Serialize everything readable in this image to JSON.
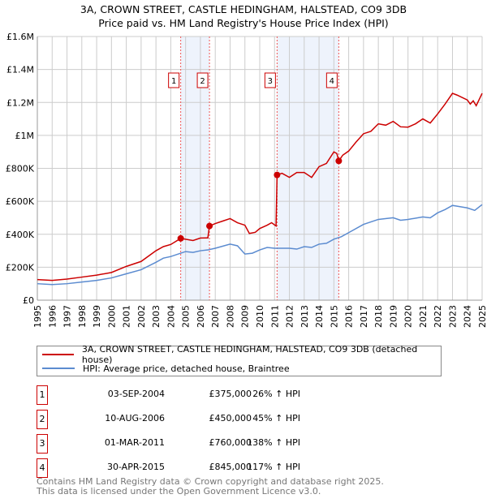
{
  "chart_data": {
    "type": "line",
    "title": "3A, CROWN STREET, CASTLE HEDINGHAM, HALSTEAD, CO9 3DB",
    "subtitle": "Price paid vs. HM Land Registry's House Price Index (HPI)",
    "xlim": [
      1995,
      2025
    ],
    "ylim": [
      0,
      1600000
    ],
    "y_ticks": [
      {
        "v": 0,
        "label": "£0"
      },
      {
        "v": 200000,
        "label": "£200K"
      },
      {
        "v": 400000,
        "label": "£400K"
      },
      {
        "v": 600000,
        "label": "£600K"
      },
      {
        "v": 800000,
        "label": "£800K"
      },
      {
        "v": 1000000,
        "label": "£1M"
      },
      {
        "v": 1200000,
        "label": "£1.2M"
      },
      {
        "v": 1400000,
        "label": "£1.4M"
      },
      {
        "v": 1600000,
        "label": "£1.6M"
      }
    ],
    "x_ticks": [
      "1995",
      "1996",
      "1997",
      "1998",
      "1999",
      "2000",
      "2001",
      "2002",
      "2003",
      "2004",
      "2005",
      "2006",
      "2007",
      "2008",
      "2009",
      "2010",
      "2011",
      "2012",
      "2013",
      "2014",
      "2015",
      "2016",
      "2017",
      "2018",
      "2019",
      "2020",
      "2021",
      "2022",
      "2023",
      "2024",
      "2025"
    ],
    "grid": true,
    "legend_placement": "below",
    "series": [
      {
        "name": "3A, CROWN STREET, CASTLE HEDINGHAM, HALSTEAD, CO9 3DB (detached house)",
        "color": "#cc0000",
        "points": [
          [
            1995,
            125000
          ],
          [
            1996,
            120000
          ],
          [
            1997,
            128000
          ],
          [
            1998,
            140000
          ],
          [
            1999,
            152000
          ],
          [
            2000,
            168000
          ],
          [
            2001,
            205000
          ],
          [
            2002,
            235000
          ],
          [
            2003,
            300000
          ],
          [
            2003.5,
            325000
          ],
          [
            2004,
            338000
          ],
          [
            2004.67,
            375000
          ],
          [
            2005,
            370000
          ],
          [
            2005.5,
            362000
          ],
          [
            2006,
            377000
          ],
          [
            2006.5,
            378000
          ],
          [
            2006.61,
            450000
          ],
          [
            2007,
            465000
          ],
          [
            2007.5,
            480000
          ],
          [
            2008,
            495000
          ],
          [
            2008.5,
            470000
          ],
          [
            2009,
            455000
          ],
          [
            2009.3,
            405000
          ],
          [
            2009.7,
            412000
          ],
          [
            2010,
            435000
          ],
          [
            2010.5,
            455000
          ],
          [
            2010.8,
            470000
          ],
          [
            2011.1,
            450000
          ],
          [
            2011.17,
            760000
          ],
          [
            2011.5,
            770000
          ],
          [
            2012,
            745000
          ],
          [
            2012.5,
            775000
          ],
          [
            2013,
            775000
          ],
          [
            2013.5,
            745000
          ],
          [
            2014,
            810000
          ],
          [
            2014.5,
            830000
          ],
          [
            2015,
            900000
          ],
          [
            2015.2,
            890000
          ],
          [
            2015.33,
            845000
          ],
          [
            2015.6,
            880000
          ],
          [
            2016,
            905000
          ],
          [
            2016.5,
            960000
          ],
          [
            2017,
            1010000
          ],
          [
            2017.5,
            1025000
          ],
          [
            2018,
            1070000
          ],
          [
            2018.5,
            1062000
          ],
          [
            2019,
            1085000
          ],
          [
            2019.5,
            1052000
          ],
          [
            2020,
            1050000
          ],
          [
            2020.5,
            1070000
          ],
          [
            2021,
            1100000
          ],
          [
            2021.5,
            1075000
          ],
          [
            2022,
            1130000
          ],
          [
            2022.5,
            1190000
          ],
          [
            2023,
            1255000
          ],
          [
            2023.3,
            1245000
          ],
          [
            2024,
            1215000
          ],
          [
            2024.2,
            1190000
          ],
          [
            2024.4,
            1210000
          ],
          [
            2024.6,
            1180000
          ],
          [
            2025,
            1255000
          ]
        ]
      },
      {
        "name": "HPI: Average price, detached house, Braintree",
        "color": "#5b8bd0",
        "points": [
          [
            1995,
            100000
          ],
          [
            1996,
            95000
          ],
          [
            1997,
            100000
          ],
          [
            1998,
            110000
          ],
          [
            1999,
            120000
          ],
          [
            2000,
            135000
          ],
          [
            2001,
            160000
          ],
          [
            2002,
            185000
          ],
          [
            2003,
            230000
          ],
          [
            2003.5,
            255000
          ],
          [
            2004,
            265000
          ],
          [
            2005,
            295000
          ],
          [
            2005.5,
            290000
          ],
          [
            2006,
            300000
          ],
          [
            2006.5,
            305000
          ],
          [
            2007,
            315000
          ],
          [
            2008,
            340000
          ],
          [
            2008.5,
            330000
          ],
          [
            2009,
            280000
          ],
          [
            2009.5,
            285000
          ],
          [
            2010,
            305000
          ],
          [
            2010.5,
            320000
          ],
          [
            2011,
            315000
          ],
          [
            2012,
            315000
          ],
          [
            2012.5,
            310000
          ],
          [
            2013,
            325000
          ],
          [
            2013.5,
            320000
          ],
          [
            2014,
            340000
          ],
          [
            2014.5,
            345000
          ],
          [
            2015,
            370000
          ],
          [
            2015.5,
            385000
          ],
          [
            2016,
            410000
          ],
          [
            2017,
            460000
          ],
          [
            2018,
            490000
          ],
          [
            2019,
            500000
          ],
          [
            2019.5,
            485000
          ],
          [
            2020,
            490000
          ],
          [
            2021,
            505000
          ],
          [
            2021.5,
            500000
          ],
          [
            2022,
            530000
          ],
          [
            2022.5,
            550000
          ],
          [
            2023,
            575000
          ],
          [
            2024,
            560000
          ],
          [
            2024.5,
            545000
          ],
          [
            2025,
            580000
          ]
        ]
      }
    ],
    "shaded_ranges": [
      [
        2004.67,
        2006.61
      ],
      [
        2011.17,
        2015.33
      ]
    ],
    "sales": [
      {
        "id": "1",
        "x": 2004.67,
        "date": "03-SEP-2004",
        "value": 375000,
        "price": "£375,000",
        "hpi": "26% ↑ HPI"
      },
      {
        "id": "2",
        "x": 2006.61,
        "date": "10-AUG-2006",
        "value": 450000,
        "price": "£450,000",
        "hpi": "45% ↑ HPI"
      },
      {
        "id": "3",
        "x": 2011.17,
        "date": "01-MAR-2011",
        "value": 760000,
        "price": "£760,000",
        "hpi": "138% ↑ HPI"
      },
      {
        "id": "4",
        "x": 2015.33,
        "date": "30-APR-2015",
        "value": 845000,
        "price": "£845,000",
        "hpi": "117% ↑ HPI"
      }
    ]
  },
  "footer": [
    "Contains HM Land Registry data © Crown copyright and database right 2025.",
    "This data is licensed under the Open Government Licence v3.0."
  ]
}
